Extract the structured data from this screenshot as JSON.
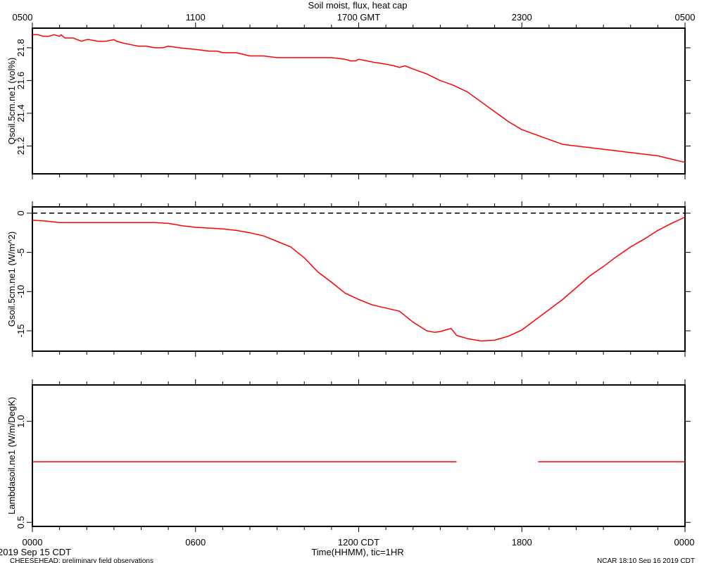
{
  "title": "Soil moist, flux, heat cap",
  "top_axis_ticks": [
    "0500",
    "1100",
    "1700 GMT",
    "2300",
    "0500"
  ],
  "bottom_axis_ticks": [
    "0000",
    "0600",
    "1200 CDT",
    "1800",
    "0000"
  ],
  "xlabel": "Time(HHMM), tic=1HR",
  "date_label": "2019 Sep 15 CDT",
  "footer_left": "CHEESEHEAD: preliminary field observations",
  "footer_right": "NCAR 18:10 Sep 16 2019 CDT",
  "line_color": "#ff0000",
  "chart_data": [
    {
      "type": "line",
      "ylabel": "Qsoil.5cm.ne1 (vol%)",
      "ylim": [
        21.03,
        21.92
      ],
      "yticks": [
        21.2,
        21.4,
        21.6,
        21.8
      ],
      "ytick_labels": [
        "21.2",
        "21.4",
        "21.6",
        "21.8"
      ],
      "xlim_hours": [
        0,
        24
      ],
      "series": [
        {
          "x": [
            0,
            0.2,
            0.4,
            0.6,
            0.8,
            1.0,
            1.05,
            1.2,
            1.5,
            1.8,
            2.0,
            2.1,
            2.4,
            2.7,
            3.0,
            3.1,
            3.3,
            3.6,
            3.9,
            4.2,
            4.5,
            4.8,
            5.0,
            5.4,
            6.0,
            6.5,
            6.8,
            7.0,
            7.5,
            8.0,
            8.5,
            9.0,
            9.5,
            10.0,
            10.5,
            11.0,
            11.5,
            11.7,
            11.9,
            12.0,
            12.3,
            12.6,
            13.0,
            13.3,
            13.5,
            13.7,
            14.0,
            14.5,
            15.0,
            15.5,
            16.0,
            16.5,
            17.0,
            17.5,
            18.0,
            18.5,
            19.0,
            19.5,
            20.0,
            20.5,
            21.0,
            21.5,
            22.0,
            22.5,
            23.0,
            23.5,
            24.0
          ],
          "y": [
            21.88,
            21.88,
            21.87,
            21.87,
            21.88,
            21.87,
            21.88,
            21.86,
            21.86,
            21.84,
            21.85,
            21.85,
            21.84,
            21.84,
            21.85,
            21.84,
            21.83,
            21.82,
            21.81,
            21.81,
            21.8,
            21.8,
            21.81,
            21.8,
            21.79,
            21.78,
            21.78,
            21.77,
            21.77,
            21.75,
            21.75,
            21.74,
            21.74,
            21.74,
            21.74,
            21.74,
            21.73,
            21.72,
            21.72,
            21.73,
            21.72,
            21.71,
            21.7,
            21.69,
            21.68,
            21.69,
            21.67,
            21.64,
            21.6,
            21.57,
            21.53,
            21.47,
            21.41,
            21.35,
            21.3,
            21.27,
            21.24,
            21.21,
            21.2,
            21.19,
            21.18,
            21.17,
            21.16,
            21.15,
            21.14,
            21.12,
            21.1
          ]
        }
      ]
    },
    {
      "type": "line",
      "ylabel": "Gsoil.5cm.ne1 (W/m^2)",
      "ylim": [
        -17.6,
        0.8
      ],
      "yticks": [
        -15,
        -10,
        -5,
        0
      ],
      "ytick_labels": [
        "-15",
        "-10",
        "-5",
        "0"
      ],
      "reference_line": 0,
      "xlim_hours": [
        0,
        24
      ],
      "series": [
        {
          "x": [
            0,
            0.5,
            1.0,
            2.0,
            3.0,
            4.0,
            4.5,
            5.0,
            5.5,
            6.0,
            6.5,
            7.0,
            7.5,
            8.0,
            8.5,
            9.0,
            9.5,
            10.0,
            10.5,
            11.0,
            11.5,
            12.0,
            12.5,
            13.0,
            13.5,
            14.0,
            14.5,
            14.8,
            15.0,
            15.2,
            15.4,
            15.6,
            15.8,
            16.0,
            16.5,
            17.0,
            17.5,
            18.0,
            18.5,
            19.0,
            19.5,
            20.0,
            20.5,
            21.0,
            21.5,
            22.0,
            22.5,
            23.0,
            23.5,
            24.0
          ],
          "y": [
            -0.9,
            -1.0,
            -1.2,
            -1.2,
            -1.2,
            -1.2,
            -1.2,
            -1.3,
            -1.6,
            -1.8,
            -1.9,
            -2.0,
            -2.2,
            -2.5,
            -2.9,
            -3.6,
            -4.3,
            -5.7,
            -7.5,
            -8.8,
            -10.2,
            -11.0,
            -11.7,
            -12.1,
            -12.5,
            -13.9,
            -15.0,
            -15.2,
            -15.1,
            -14.9,
            -14.7,
            -15.6,
            -15.8,
            -16.0,
            -16.3,
            -16.2,
            -15.7,
            -14.9,
            -13.6,
            -12.3,
            -11.0,
            -9.5,
            -8.0,
            -6.8,
            -5.5,
            -4.3,
            -3.3,
            -2.2,
            -1.3,
            -0.5
          ]
        }
      ]
    },
    {
      "type": "line",
      "ylabel": "Lambdasoil.ne1 (W/m/DegK)",
      "ylim": [
        0.48,
        1.18
      ],
      "yticks": [
        0.5,
        1.0
      ],
      "ytick_labels": [
        "0.5",
        "1.0"
      ],
      "xlim_hours": [
        0,
        24
      ],
      "series": [
        {
          "x": [
            0,
            15.6
          ],
          "y": [
            0.8,
            0.8
          ]
        },
        {
          "x": [
            18.6,
            24.0
          ],
          "y": [
            0.8,
            0.8
          ]
        }
      ]
    }
  ]
}
